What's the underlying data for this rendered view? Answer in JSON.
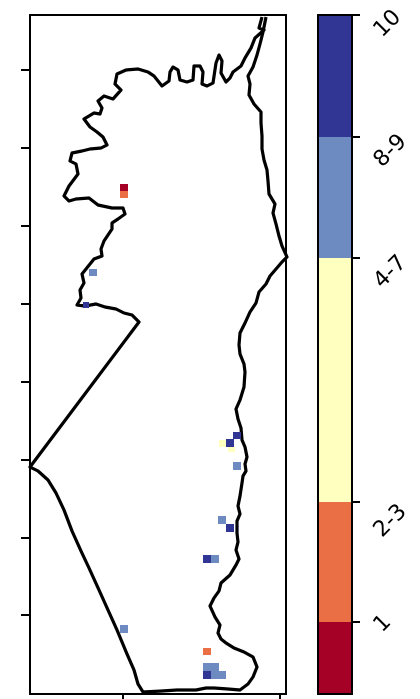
{
  "map": {
    "frame": {
      "x_ticks": 2,
      "y_ticks": 8
    }
  },
  "colorbar": {
    "bins": [
      {
        "label": "1",
        "color": "#a50026"
      },
      {
        "label": "2-3",
        "color": "#ea6f44"
      },
      {
        "label": "4-7",
        "color": "#ffffc0"
      },
      {
        "label": "8-9",
        "color": "#6e8bc1"
      },
      {
        "label": "10",
        "color": "#313695"
      }
    ],
    "tick_labels": [
      "1",
      "2-3",
      "4-7",
      "8-9",
      "10"
    ]
  },
  "legend_classes": {
    "dark_red": "#a50026",
    "orange": "#ea6f44",
    "light_yellow": "#ffffc0",
    "light_blue": "#6e8bc1",
    "dark_blue": "#313695"
  }
}
